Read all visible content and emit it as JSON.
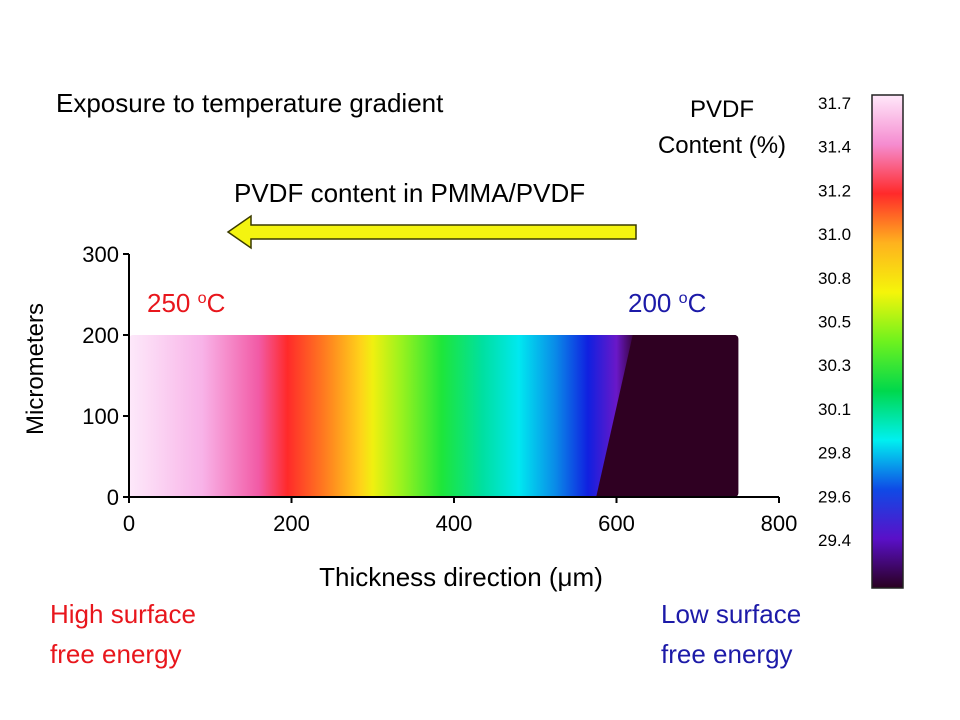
{
  "slide_title": "Exposure to temperature gradient",
  "arrow_label": "PVDF content in PMMA/PVDF",
  "left_temp": {
    "value": "250 ",
    "sup": "o",
    "unit": "C"
  },
  "right_temp": {
    "value": "200 ",
    "sup": "o",
    "unit": "C"
  },
  "left_note": [
    "High surface",
    "free energy"
  ],
  "right_note": [
    "Low surface",
    "free energy"
  ],
  "colorbar": {
    "title": [
      "PVDF",
      "Content (%)"
    ],
    "ticks": [
      "31.7",
      "31.4",
      "31.2",
      "31.0",
      "30.8",
      "30.5",
      "30.3",
      "30.1",
      "29.8",
      "29.6",
      "29.4"
    ],
    "stops": [
      "#ffe8fa",
      "#f58cd0",
      "#ff2a2a",
      "#ffb21e",
      "#f5f50a",
      "#6ef21e",
      "#00d84c",
      "#00f0f0",
      "#0f4ae6",
      "#5a10c8",
      "#2a0020"
    ]
  },
  "chart_data": {
    "type": "heatmap",
    "xlabel": "Thickness direction (μm)",
    "ylabel": "Micrometers",
    "xlim": [
      0,
      800
    ],
    "ylim": [
      0,
      300
    ],
    "xticks": [
      "0",
      "200",
      "400",
      "600",
      "800"
    ],
    "yticks": [
      "0",
      "100",
      "200",
      "300"
    ],
    "sample_extent": {
      "x": [
        0,
        750
      ],
      "y": [
        0,
        200
      ]
    },
    "colormap_range": [
      29.2,
      31.7
    ],
    "gradient_stops": [
      {
        "x": 0,
        "color": "#fde9fa"
      },
      {
        "x": 90,
        "color": "#f8b3e8"
      },
      {
        "x": 160,
        "color": "#f25aa5"
      },
      {
        "x": 195,
        "color": "#ff2a2a"
      },
      {
        "x": 240,
        "color": "#ff7a20"
      },
      {
        "x": 285,
        "color": "#ffd21a"
      },
      {
        "x": 300,
        "color": "#f0f010"
      },
      {
        "x": 335,
        "color": "#9af21e"
      },
      {
        "x": 385,
        "color": "#1ee63a"
      },
      {
        "x": 435,
        "color": "#00e0a0"
      },
      {
        "x": 480,
        "color": "#00e8f0"
      },
      {
        "x": 525,
        "color": "#0a8ae8"
      },
      {
        "x": 565,
        "color": "#1020e0"
      },
      {
        "x": 600,
        "color": "#6a18c8"
      },
      {
        "x": 625,
        "color": "#2f0022"
      },
      {
        "x": 750,
        "color": "#2f0022"
      }
    ],
    "dark_boundary": [
      [
        575,
        0
      ],
      [
        620,
        200
      ]
    ]
  }
}
